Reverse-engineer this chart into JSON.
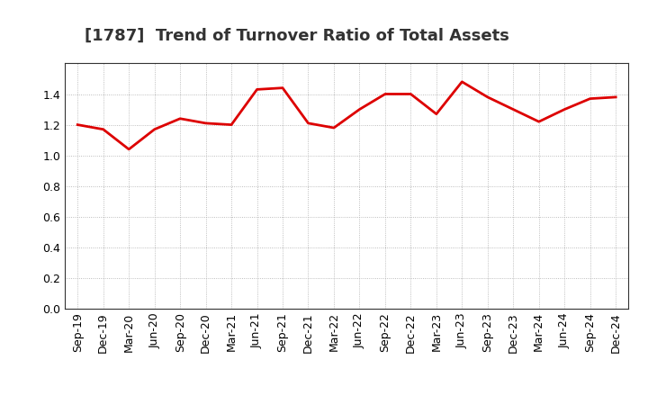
{
  "title": "[1787]  Trend of Turnover Ratio of Total Assets",
  "x_labels": [
    "Sep-19",
    "Dec-19",
    "Mar-20",
    "Jun-20",
    "Sep-20",
    "Dec-20",
    "Mar-21",
    "Jun-21",
    "Sep-21",
    "Dec-21",
    "Mar-22",
    "Jun-22",
    "Sep-22",
    "Dec-22",
    "Mar-23",
    "Jun-23",
    "Sep-23",
    "Dec-23",
    "Mar-24",
    "Jun-24",
    "Sep-24",
    "Dec-24"
  ],
  "y_values": [
    1.2,
    1.17,
    1.04,
    1.17,
    1.24,
    1.21,
    1.2,
    1.43,
    1.44,
    1.21,
    1.18,
    1.3,
    1.4,
    1.4,
    1.27,
    1.48,
    1.38,
    1.3,
    1.22,
    1.3,
    1.37,
    1.38
  ],
  "line_color": "#dd0000",
  "line_width": 2.0,
  "ylim": [
    0.0,
    1.6
  ],
  "yticks": [
    0.0,
    0.2,
    0.4,
    0.6,
    0.8,
    1.0,
    1.2,
    1.4
  ],
  "background_color": "#ffffff",
  "plot_bg_color": "#ffffff",
  "grid_color": "#aaaaaa",
  "title_fontsize": 13,
  "tick_fontsize": 9
}
